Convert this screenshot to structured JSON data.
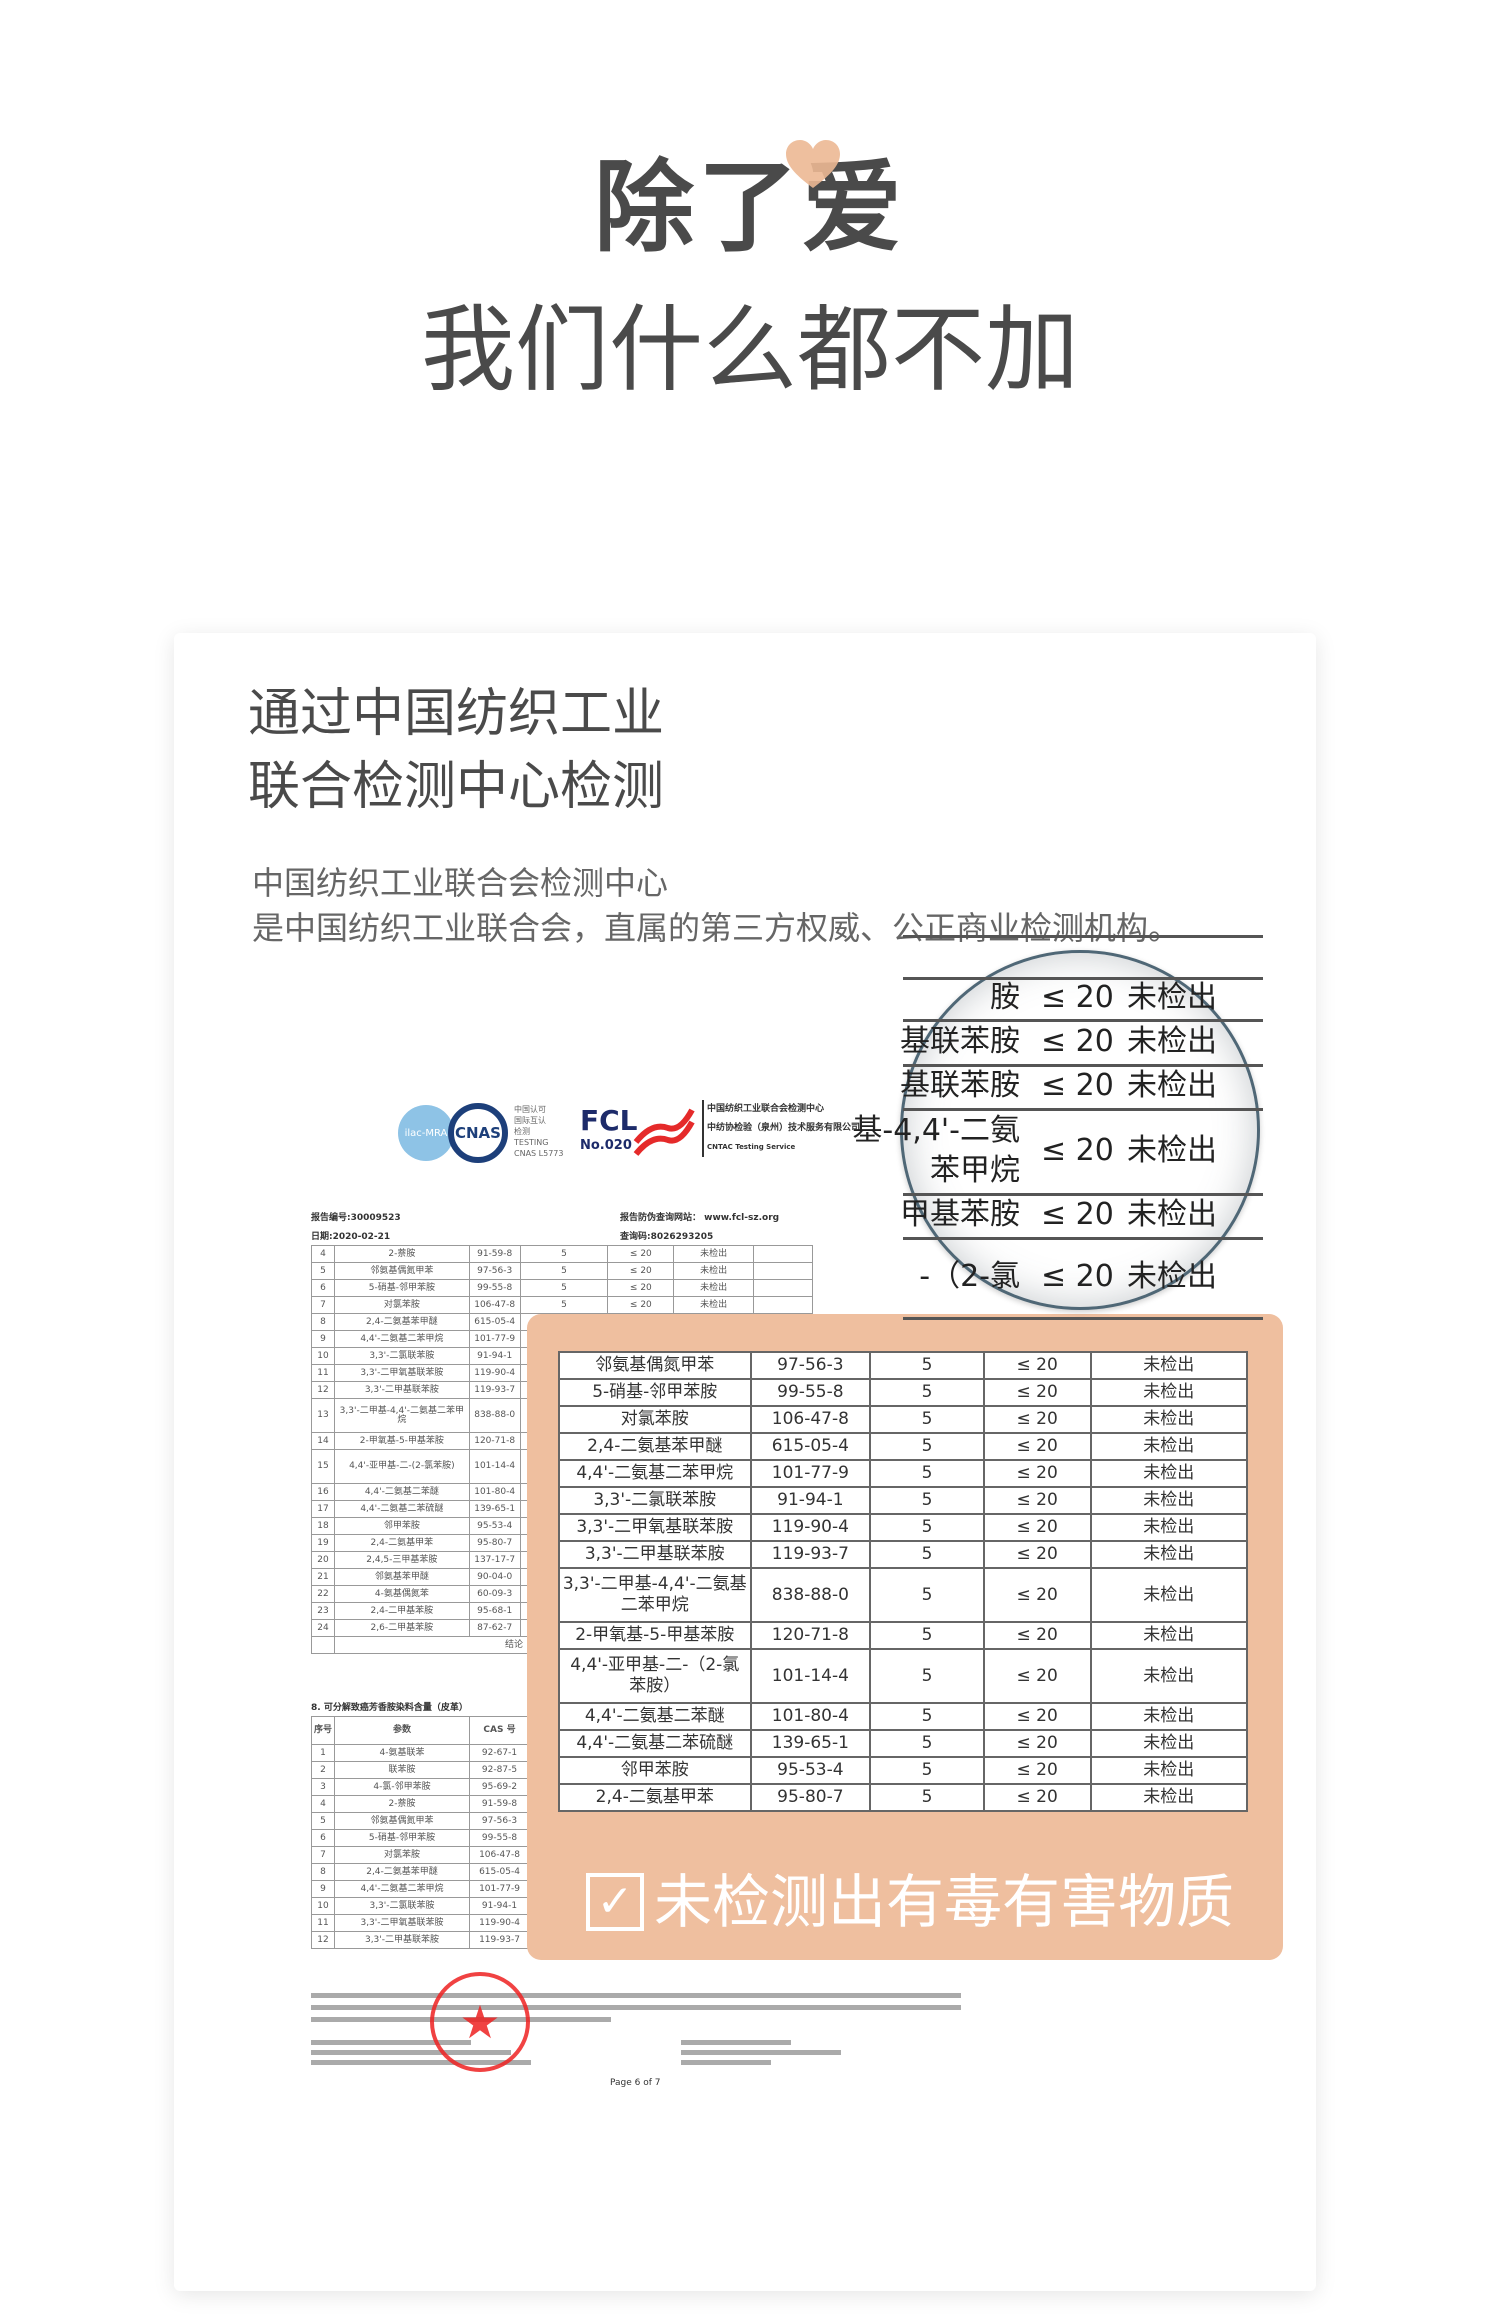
{
  "headline": {
    "line1": "除了爱",
    "line2": "我们什么都不加"
  },
  "colors": {
    "accent": "#efbf9f",
    "heart": "#ecb894",
    "text": "#4a4a4a",
    "stamp": "#e22222"
  },
  "card": {
    "title_lines": [
      "通过中国纺织工业",
      "联合检测中心检测"
    ],
    "desc_lines": [
      "中国纺织工业联合会检测中心",
      "是中国纺织工业联合会，直属的第三方权威、公正商业检测机构。"
    ]
  },
  "report": {
    "logos": {
      "ilac": "ilac-MRA",
      "cnas": "CNAS",
      "cnas_text": [
        "中国认可",
        "国际互认",
        "检测",
        "TESTING",
        "CNAS L5773"
      ],
      "fcl": "FCL",
      "fcl_no": "No.020",
      "org_lines": [
        "中国纺织工业联合会检测中心",
        "中纺协检验（泉州）技术服务有限公司",
        "CNTAC Testing Service"
      ]
    },
    "report_no": "报告编号:30009523",
    "date": "日期:2020-02-21",
    "website": "报告防伪查询网站： www.fcl-sz.org",
    "query_code": "查询码:8026293205",
    "table1": {
      "rows": [
        [
          "4",
          "2-萘胺",
          "91-59-8",
          "5",
          "≤ 20",
          "未检出"
        ],
        [
          "5",
          "邻氨基偶氮甲苯",
          "97-56-3",
          "5",
          "≤ 20",
          "未检出"
        ],
        [
          "6",
          "5-硝基-邻甲苯胺",
          "99-55-8",
          "5",
          "≤ 20",
          "未检出"
        ],
        [
          "7",
          "对氯苯胺",
          "106-47-8",
          "5",
          "≤ 20",
          "未检出"
        ],
        [
          "8",
          "2,4-二氨基苯甲醚",
          "615-05-4"
        ],
        [
          "9",
          "4,4'-二氨基二苯甲烷",
          "101-77-9"
        ],
        [
          "10",
          "3,3'-二氯联苯胺",
          "91-94-1"
        ],
        [
          "11",
          "3,3'-二甲氧基联苯胺",
          "119-90-4"
        ],
        [
          "12",
          "3,3'-二甲基联苯胺",
          "119-93-7"
        ],
        [
          "13",
          "3,3'-二甲基-4,4'-二氨基二苯甲烷",
          "838-88-0"
        ],
        [
          "14",
          "2-甲氧基-5-甲基苯胺",
          "120-71-8"
        ],
        [
          "15",
          "4,4'-亚甲基-二-(2-氯苯胺)",
          "101-14-4"
        ],
        [
          "16",
          "4,4'-二氨基二苯醚",
          "101-80-4"
        ],
        [
          "17",
          "4,4'-二氨基二苯硫醚",
          "139-65-1"
        ],
        [
          "18",
          "邻甲苯胺",
          "95-53-4"
        ],
        [
          "19",
          "2,4-二氨基甲苯",
          "95-80-7"
        ],
        [
          "20",
          "2,4,5-三甲基苯胺",
          "137-17-7"
        ],
        [
          "21",
          "邻氨基苯甲醚",
          "90-04-0"
        ],
        [
          "22",
          "4-氨基偶氮苯",
          "60-09-3"
        ],
        [
          "23",
          "2,4-二甲基苯胺",
          "95-68-1"
        ],
        [
          "24",
          "2,6-二甲基苯胺",
          "87-62-7"
        ]
      ],
      "conclusion_label": "结论"
    },
    "section8_title": "8. 可分解致癌芳香胺染料含量（皮革）",
    "table2": {
      "headers": [
        "序号",
        "参数",
        "CAS 号"
      ],
      "rows": [
        [
          "1",
          "4-氨基联苯",
          "92-67-1"
        ],
        [
          "2",
          "联苯胺",
          "92-87-5"
        ],
        [
          "3",
          "4-氯-邻甲苯胺",
          "95-69-2"
        ],
        [
          "4",
          "2-萘胺",
          "91-59-8"
        ],
        [
          "5",
          "邻氨基偶氮甲苯",
          "97-56-3"
        ],
        [
          "6",
          "5-硝基-邻甲苯胺",
          "99-55-8"
        ],
        [
          "7",
          "对氯苯胺",
          "106-47-8"
        ],
        [
          "8",
          "2,4-二氨基苯甲醚",
          "615-05-4"
        ],
        [
          "9",
          "4,4'-二氨基二苯甲烷",
          "101-77-9"
        ],
        [
          "10",
          "3,3'-二氯联苯胺",
          "91-94-1"
        ],
        [
          "11",
          "3,3'-二甲氧基联苯胺",
          "119-90-4"
        ],
        [
          "12",
          "3,3'-二甲基联苯胺",
          "119-93-7"
        ]
      ]
    },
    "page": "Page 6 of 7"
  },
  "highlight": {
    "rows": [
      [
        "邻氨基偶氮甲苯",
        "97-56-3",
        "5",
        "≤ 20",
        "未检出"
      ],
      [
        "5-硝基-邻甲苯胺",
        "99-55-8",
        "5",
        "≤ 20",
        "未检出"
      ],
      [
        "对氯苯胺",
        "106-47-8",
        "5",
        "≤ 20",
        "未检出"
      ],
      [
        "2,4-二氨基苯甲醚",
        "615-05-4",
        "5",
        "≤ 20",
        "未检出"
      ],
      [
        "4,4'-二氨基二苯甲烷",
        "101-77-9",
        "5",
        "≤ 20",
        "未检出"
      ],
      [
        "3,3'-二氯联苯胺",
        "91-94-1",
        "5",
        "≤ 20",
        "未检出"
      ],
      [
        "3,3'-二甲氧基联苯胺",
        "119-90-4",
        "5",
        "≤ 20",
        "未检出"
      ],
      [
        "3,3'-二甲基联苯胺",
        "119-93-7",
        "5",
        "≤ 20",
        "未检出"
      ],
      [
        "3,3'-二甲基-4,4'-二氨基二苯甲烷",
        "838-88-0",
        "5",
        "≤ 20",
        "未检出"
      ],
      [
        "2-甲氧基-5-甲基苯胺",
        "120-71-8",
        "5",
        "≤ 20",
        "未检出"
      ],
      [
        "4,4'-亚甲基-二-（2-氯苯胺）",
        "101-14-4",
        "5",
        "≤ 20",
        "未检出"
      ],
      [
        "4,4'-二氨基二苯醚",
        "101-80-4",
        "5",
        "≤ 20",
        "未检出"
      ],
      [
        "4,4'-二氨基二苯硫醚",
        "139-65-1",
        "5",
        "≤ 20",
        "未检出"
      ],
      [
        "邻甲苯胺",
        "95-53-4",
        "5",
        "≤ 20",
        "未检出"
      ],
      [
        "2,4-二氨基甲苯",
        "95-80-7",
        "5",
        "≤ 20",
        "未检出"
      ]
    ],
    "banner": "未检测出有毒有害物质",
    "check_icon": "checkbox-check-icon"
  },
  "magnifier": {
    "rows": [
      {
        "name": [
          "胺"
        ],
        "limit": "≤ 20",
        "result": "未检出"
      },
      {
        "name": [
          "基联苯胺"
        ],
        "limit": "≤ 20",
        "result": "未检出"
      },
      {
        "name": [
          "基联苯胺"
        ],
        "limit": "≤ 20",
        "result": "未检出"
      },
      {
        "name": [
          "基-4,4'-二氨",
          "苯甲烷"
        ],
        "limit": "≤ 20",
        "result": "未检出"
      },
      {
        "name": [
          "甲基苯胺"
        ],
        "limit": "≤ 20",
        "result": "未检出"
      },
      {
        "name": [
          "-（2-氯"
        ],
        "limit": "≤ 20",
        "result": "未检出"
      }
    ]
  }
}
